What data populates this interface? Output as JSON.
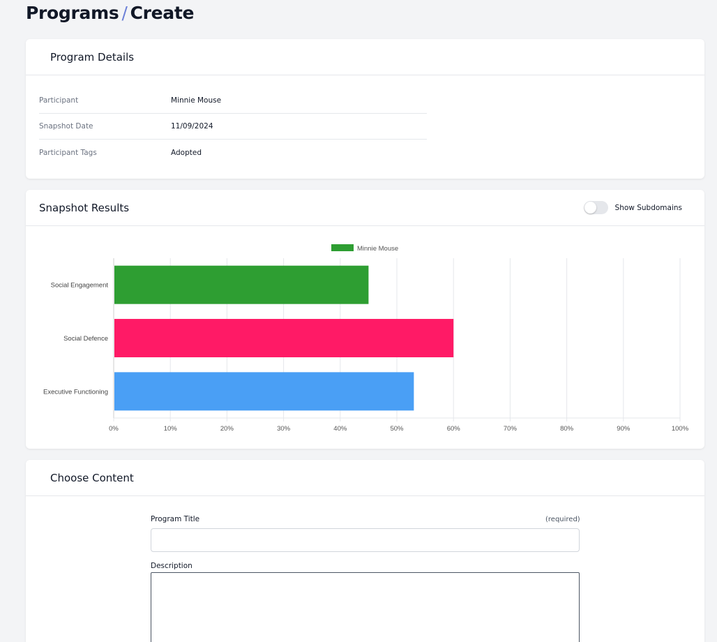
{
  "header": {
    "section": "Programs",
    "separator": "/",
    "page": "Create"
  },
  "details": {
    "title": "Program Details",
    "rows": [
      {
        "label": "Participant",
        "value": "Minnie Mouse"
      },
      {
        "label": "Snapshot Date",
        "value": "11/09/2024"
      },
      {
        "label": "Participant Tags",
        "value": "Adopted"
      }
    ]
  },
  "results": {
    "title": "Snapshot Results",
    "toggle_label": "Show Subdomains",
    "toggle_on": false
  },
  "chart_data": {
    "type": "bar",
    "orientation": "horizontal",
    "categories": [
      "Social Engagement",
      "Social Defence",
      "Executive Functioning"
    ],
    "values": [
      45,
      60,
      53
    ],
    "bar_colors": [
      "#2e9e32",
      "#ff1a66",
      "#4a9ff5"
    ],
    "series": [
      {
        "name": "Minnie Mouse",
        "values": [
          45,
          60,
          53
        ]
      }
    ],
    "legend": {
      "label": "Minnie Mouse",
      "color": "#2e9e32",
      "position": "top"
    },
    "xlim": [
      0,
      100
    ],
    "xticks": [
      "0%",
      "10%",
      "20%",
      "30%",
      "40%",
      "50%",
      "60%",
      "70%",
      "80%",
      "90%",
      "100%"
    ],
    "grid": true
  },
  "content": {
    "title": "Choose Content",
    "program_title_label": "Program Title",
    "required_label": "(required)",
    "program_title_value": "",
    "description_label": "Description",
    "description_value": ""
  }
}
